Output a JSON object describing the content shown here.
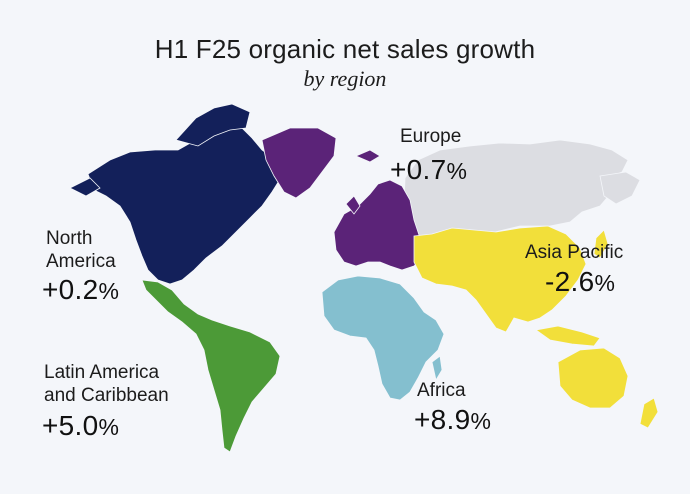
{
  "title": "H1 F25 organic net sales growth",
  "subtitle": "by region",
  "regions": [
    {
      "id": "north-america",
      "name_line1": "North",
      "name_line2": "America",
      "value": "+0.2",
      "unit": "%",
      "color": "#13205a"
    },
    {
      "id": "latin-america",
      "name_line1": "Latin America",
      "name_line2": "and Caribbean",
      "value": "+5.0",
      "unit": "%",
      "color": "#4c9a37"
    },
    {
      "id": "europe",
      "name_line1": "Europe",
      "name_line2": "",
      "value": "+0.7",
      "unit": "%",
      "color": "#5b2378"
    },
    {
      "id": "asia-pacific",
      "name_line1": "Asia Pacific",
      "name_line2": "",
      "value": "-2.6",
      "unit": "%",
      "color": "#f2df3a"
    },
    {
      "id": "africa",
      "name_line1": "Africa",
      "name_line2": "",
      "value": "+8.9",
      "unit": "%",
      "color": "#84bfcf"
    }
  ],
  "other_color": "#dcdde2"
}
